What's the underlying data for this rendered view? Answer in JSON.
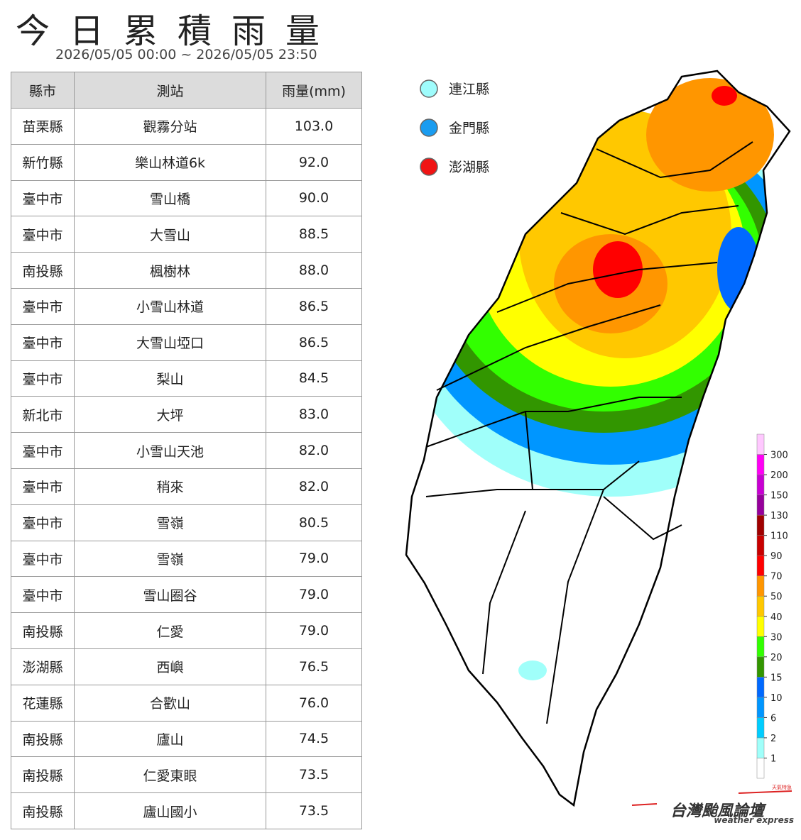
{
  "header": {
    "title": "今日累積雨量",
    "subtitle": "2026/05/05 00:00 ~ 2026/05/05 23:50"
  },
  "table": {
    "columns": [
      "縣市",
      "測站",
      "雨量(mm)"
    ],
    "rows": [
      [
        "苗栗縣",
        "觀霧分站",
        "103.0"
      ],
      [
        "新竹縣",
        "樂山林道6k",
        "92.0"
      ],
      [
        "臺中市",
        "雪山橋",
        "90.0"
      ],
      [
        "臺中市",
        "大雪山",
        "88.5"
      ],
      [
        "南投縣",
        "楓樹林",
        "88.0"
      ],
      [
        "臺中市",
        "小雪山林道",
        "86.5"
      ],
      [
        "臺中市",
        "大雪山埡口",
        "86.5"
      ],
      [
        "臺中市",
        "梨山",
        "84.5"
      ],
      [
        "新北市",
        "大坪",
        "83.0"
      ],
      [
        "臺中市",
        "小雪山天池",
        "82.0"
      ],
      [
        "臺中市",
        "稍來",
        "82.0"
      ],
      [
        "臺中市",
        "雪嶺",
        "80.5"
      ],
      [
        "臺中市",
        "雪嶺",
        "79.0"
      ],
      [
        "臺中市",
        "雪山圈谷",
        "79.0"
      ],
      [
        "南投縣",
        "仁愛",
        "79.0"
      ],
      [
        "澎湖縣",
        "西嶼",
        "76.5"
      ],
      [
        "花蓮縣",
        "合歡山",
        "76.0"
      ],
      [
        "南投縣",
        "廬山",
        "74.5"
      ],
      [
        "南投縣",
        "仁愛東眼",
        "73.5"
      ],
      [
        "南投縣",
        "廬山國小",
        "73.5"
      ]
    ]
  },
  "islands": [
    {
      "label": "連江縣",
      "color": "#9ffcfc"
    },
    {
      "label": "金門縣",
      "color": "#1a9cf0"
    },
    {
      "label": "澎湖縣",
      "color": "#f01414"
    }
  ],
  "colorbar": {
    "ticks": [
      1,
      2,
      6,
      10,
      15,
      20,
      30,
      40,
      50,
      70,
      90,
      110,
      130,
      150,
      200,
      300
    ],
    "colors": [
      "#ffffff",
      "#a0fffa",
      "#00cdff",
      "#0096ff",
      "#0069ff",
      "#329600",
      "#32ff00",
      "#ffff00",
      "#ffc800",
      "#ff9600",
      "#ff0000",
      "#c80000",
      "#a00000",
      "#96009b",
      "#c800d2",
      "#ff00f5",
      "#ffc8ff"
    ]
  },
  "watermark": {
    "brand": "台灣颱風論壇",
    "subbrand": "weather express",
    "tag": "天氣特急"
  }
}
